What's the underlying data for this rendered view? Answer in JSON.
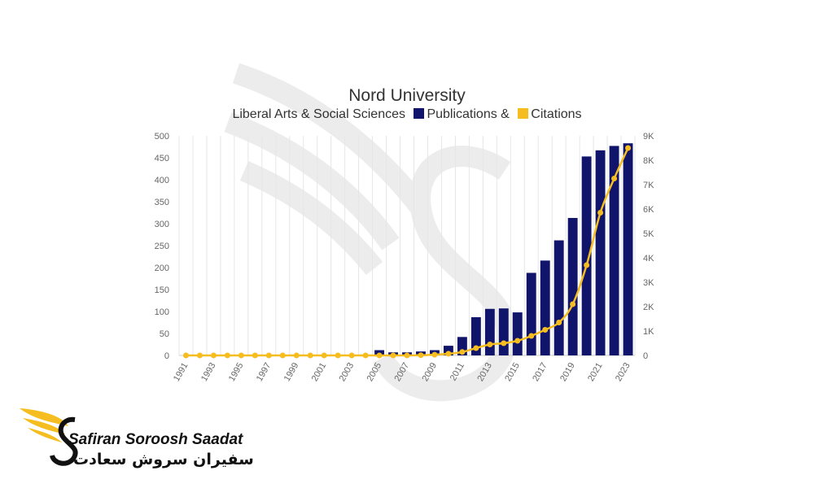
{
  "title": "Nord University",
  "subtitle": {
    "prefix": "Liberal Arts & Social Sciences",
    "pub_label": "Publications",
    "amp": "&",
    "cit_label": "Citations"
  },
  "colors": {
    "publications": "#10146b",
    "citations": "#f5bd1f",
    "grid": "#e6e6e6",
    "text": "#666666"
  },
  "chart_data": {
    "type": "bar",
    "title": "Nord University",
    "subtitle": "Liberal Arts & Social Sciences Publications & Citations",
    "categories": [
      "1991",
      "1992",
      "1993",
      "1994",
      "1995",
      "1996",
      "1997",
      "1998",
      "1999",
      "2000",
      "2001",
      "2002",
      "2003",
      "2004",
      "2005",
      "2006",
      "2007",
      "2008",
      "2009",
      "2010",
      "2011",
      "2012",
      "2013",
      "2014",
      "2015",
      "2016",
      "2017",
      "2018",
      "2019",
      "2020",
      "2021",
      "2022",
      "2023"
    ],
    "x_tick_labels": [
      "1991",
      "1993",
      "1995",
      "1997",
      "1999",
      "2001",
      "2003",
      "2005",
      "2007",
      "2009",
      "2011",
      "2013",
      "2015",
      "2017",
      "2019",
      "2021",
      "2023"
    ],
    "series": [
      {
        "name": "Publications",
        "type": "bar",
        "axis": "left",
        "values": [
          0,
          0,
          0,
          0,
          0,
          0,
          0,
          0,
          0,
          0,
          0,
          0,
          1,
          2,
          12,
          7,
          7,
          9,
          12,
          22,
          42,
          87,
          106,
          107,
          98,
          188,
          216,
          262,
          313,
          453,
          467,
          477,
          483
        ]
      },
      {
        "name": "Citations",
        "type": "line",
        "axis": "right",
        "values": [
          0,
          0,
          0,
          0,
          0,
          0,
          0,
          0,
          0,
          0,
          0,
          0,
          0,
          0,
          0,
          0,
          0,
          10,
          30,
          70,
          140,
          300,
          450,
          500,
          600,
          800,
          1050,
          1350,
          2100,
          3700,
          5850,
          7250,
          8500
        ]
      }
    ],
    "y_left": {
      "min": 0,
      "max": 500,
      "ticks": [
        "0",
        "50",
        "100",
        "150",
        "200",
        "250",
        "300",
        "350",
        "400",
        "450",
        "500"
      ]
    },
    "y_right": {
      "min": 0,
      "max": 9000,
      "ticks": [
        "0",
        "1K",
        "2K",
        "3K",
        "4K",
        "5K",
        "6K",
        "7K",
        "8K",
        "9K"
      ]
    },
    "grid": "vertical",
    "legend": "in subtitle"
  },
  "logo": {
    "en": "Safiran Soroosh Saadat",
    "fa": "سفیران سروش سعادت"
  }
}
